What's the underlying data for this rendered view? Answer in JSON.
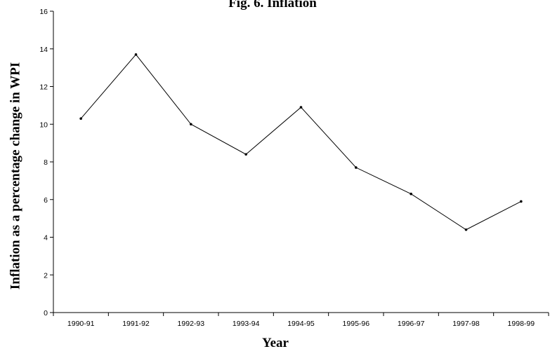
{
  "chart_data": {
    "type": "line",
    "title": "Fig. 6. Inflation",
    "xlabel": "Year",
    "ylabel": "Inflation as a percentage change in WPI",
    "categories": [
      "1990-91",
      "1991-92",
      "1992-93",
      "1993-94",
      "1994-95",
      "1995-96",
      "1996-97",
      "1997-98",
      "1998-99"
    ],
    "values": [
      10.3,
      13.7,
      10.0,
      8.4,
      10.9,
      7.7,
      6.3,
      4.4,
      5.9
    ],
    "ylim": [
      0,
      16
    ],
    "yticks": [
      "0",
      "2",
      "4",
      "6",
      "8",
      "10",
      "12",
      "14",
      "16"
    ],
    "grid": false,
    "legend": "none"
  }
}
